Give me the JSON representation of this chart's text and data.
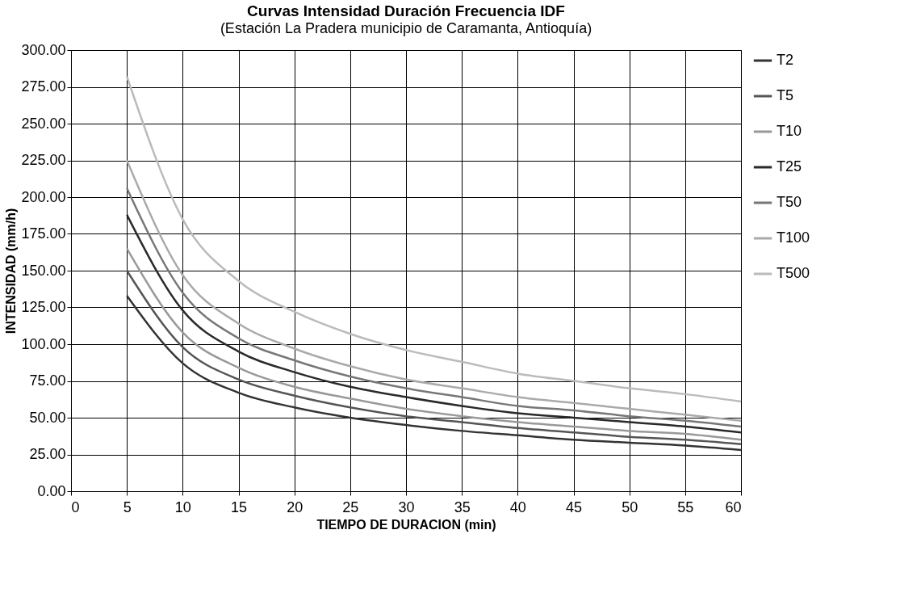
{
  "chart_data": {
    "type": "line",
    "title": "Curvas Intensidad Duración Frecuencia IDF",
    "subtitle": "(Estación La Pradera municipio de Caramanta, Antioquía)",
    "xlabel": "TIEMPO DE DURACION (min)",
    "ylabel": "INTENSIDAD (mm/h)",
    "x": [
      5,
      10,
      15,
      20,
      25,
      30,
      35,
      40,
      45,
      50,
      55,
      60
    ],
    "series": [
      {
        "name": "T2",
        "color": "#333333",
        "values": [
          133,
          87,
          67,
          57,
          50,
          45,
          41,
          38,
          35,
          33,
          31,
          28
        ]
      },
      {
        "name": "T5",
        "color": "#555555",
        "values": [
          150,
          98,
          76,
          65,
          57,
          51,
          47,
          43,
          40,
          37,
          35,
          32
        ]
      },
      {
        "name": "T10",
        "color": "#999999",
        "values": [
          165,
          108,
          84,
          71,
          63,
          56,
          51,
          47,
          44,
          41,
          39,
          35
        ]
      },
      {
        "name": "T25",
        "color": "#2a2a2a",
        "values": [
          188,
          123,
          95,
          81,
          71,
          64,
          58,
          53,
          50,
          47,
          44,
          40
        ]
      },
      {
        "name": "T50",
        "color": "#777777",
        "values": [
          206,
          135,
          104,
          89,
          78,
          70,
          64,
          58,
          55,
          51,
          48,
          44
        ]
      },
      {
        "name": "T100",
        "color": "#aaaaaa",
        "values": [
          225,
          147,
          114,
          97,
          85,
          76,
          70,
          64,
          60,
          56,
          52,
          48
        ]
      },
      {
        "name": "T500",
        "color": "#bbbbbb",
        "values": [
          282,
          185,
          143,
          122,
          107,
          96,
          88,
          80,
          75,
          70,
          66,
          61
        ]
      }
    ],
    "xlim": [
      0,
      60
    ],
    "xticks": [
      0,
      5,
      10,
      15,
      20,
      25,
      30,
      35,
      40,
      45,
      50,
      55,
      60
    ],
    "ylim": [
      0,
      300
    ],
    "yticks": [
      {
        "value": 0,
        "label": "0.00"
      },
      {
        "value": 25,
        "label": "25.00"
      },
      {
        "value": 50,
        "label": "50.00"
      },
      {
        "value": 75,
        "label": "75.00"
      },
      {
        "value": 100,
        "label": "100.00"
      },
      {
        "value": 125,
        "label": "125.00"
      },
      {
        "value": 150,
        "label": "150.00"
      },
      {
        "value": 175,
        "label": "175.00"
      },
      {
        "value": 200,
        "label": "200.00"
      },
      {
        "value": 225,
        "label": "225.00"
      },
      {
        "value": 250,
        "label": "250.00"
      },
      {
        "value": 275,
        "label": "275.00"
      },
      {
        "value": 300,
        "label": "300.00"
      }
    ],
    "grid": true,
    "legend": "right",
    "marker": "none",
    "line_style": "solid"
  }
}
